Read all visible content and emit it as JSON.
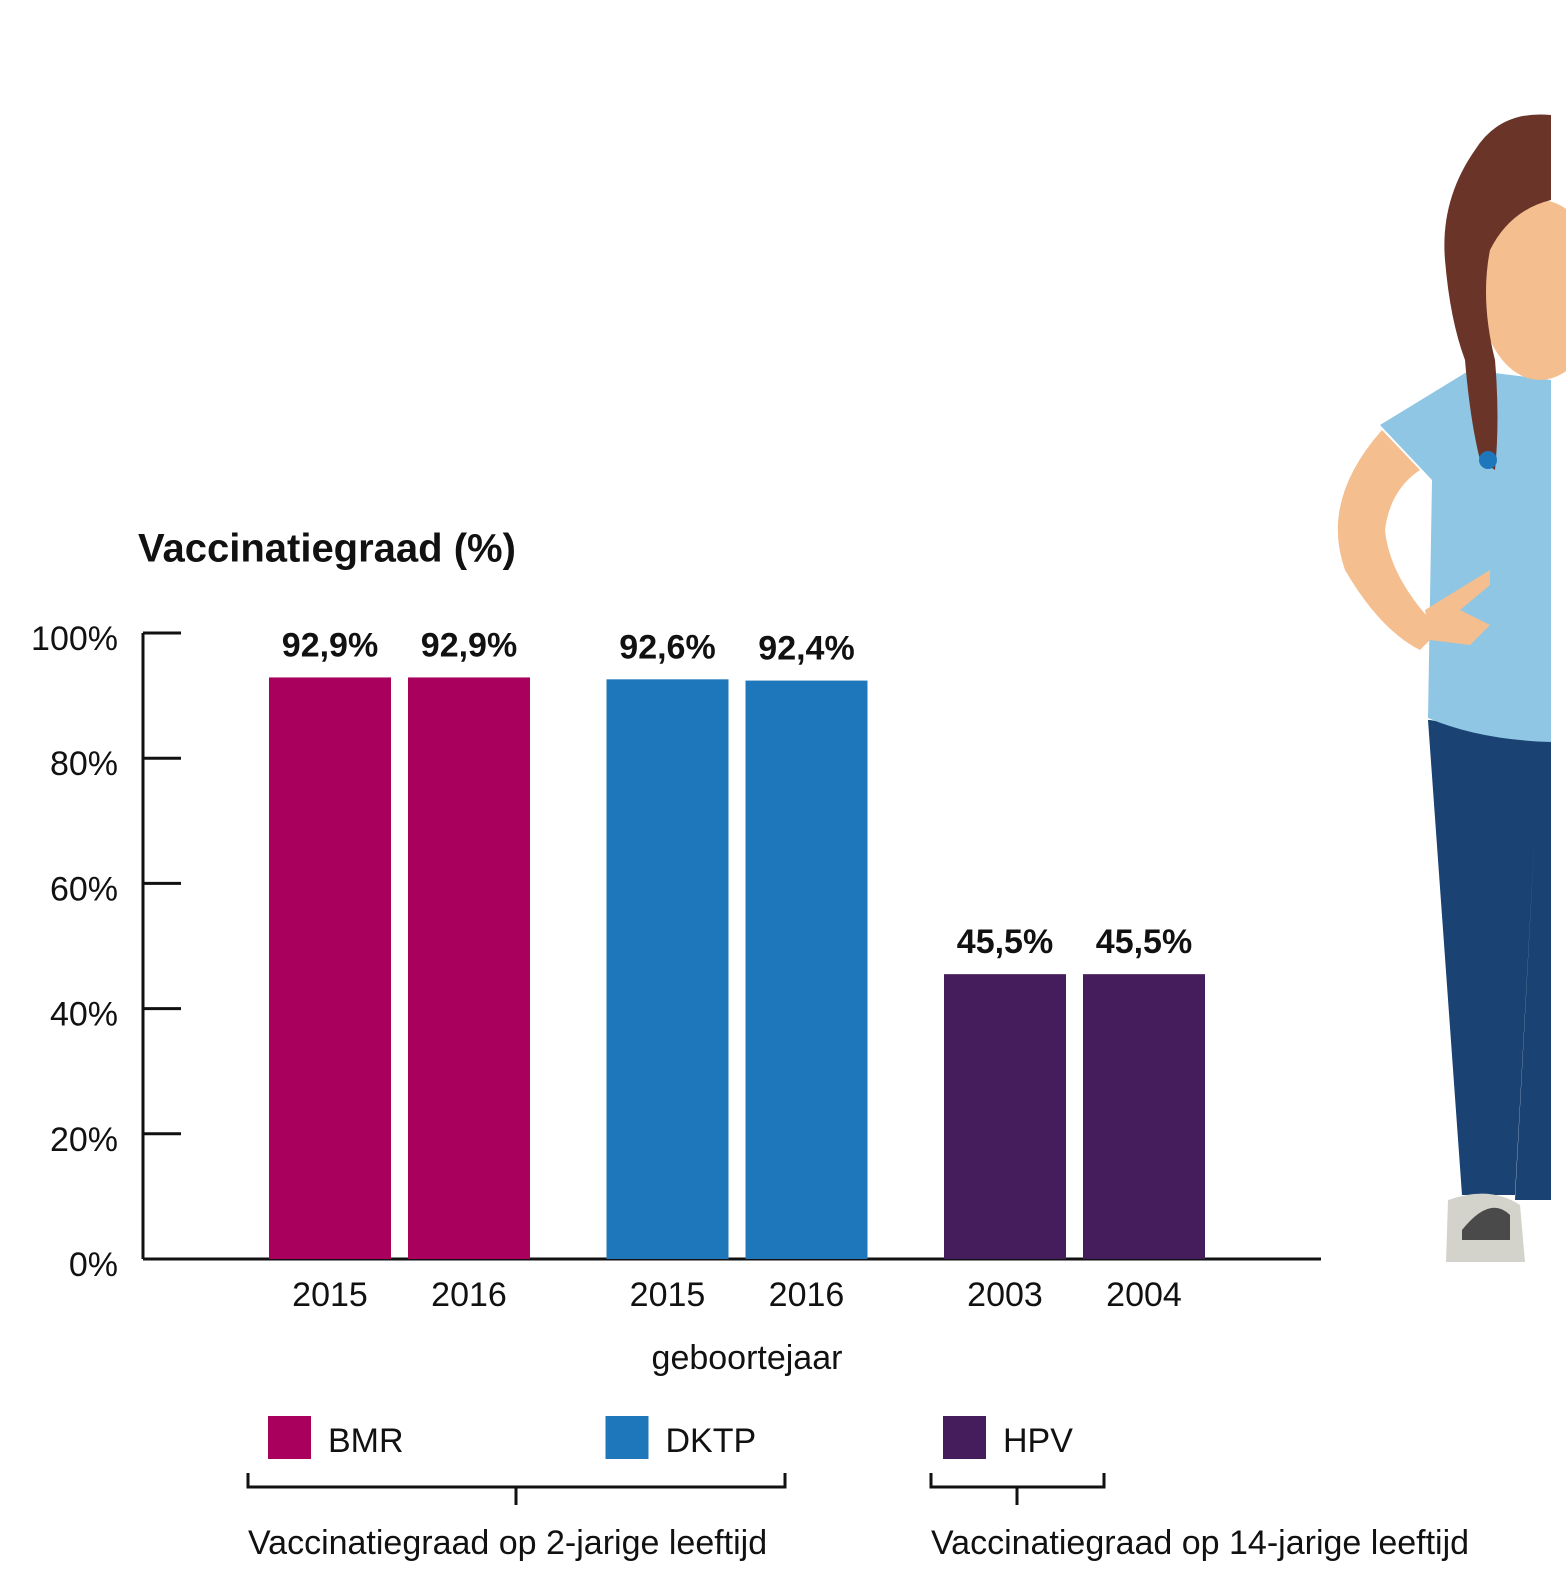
{
  "chart_data": {
    "type": "grouped-bar",
    "title": "Vaccinatiegraad (%)",
    "x_label": "geboortejaar",
    "ylim": [
      0,
      100
    ],
    "yticks": [
      {
        "value": 0,
        "label": "0%"
      },
      {
        "value": 20,
        "label": "20%"
      },
      {
        "value": 40,
        "label": "40%"
      },
      {
        "value": 60,
        "label": "60%"
      },
      {
        "value": 80,
        "label": "80%"
      },
      {
        "value": 100,
        "label": "100%"
      }
    ],
    "series": [
      {
        "name": "BMR",
        "color": "#a8005c",
        "categories": [
          "2015",
          "2016"
        ],
        "values": [
          92.9,
          92.9
        ],
        "value_labels": [
          "92,9%",
          "92,9%"
        ]
      },
      {
        "name": "DKTP",
        "color": "#1f77bb",
        "categories": [
          "2015",
          "2016"
        ],
        "values": [
          92.6,
          92.4
        ],
        "value_labels": [
          "92,6%",
          "92,4%"
        ]
      },
      {
        "name": "HPV",
        "color": "#451c5c",
        "categories": [
          "2003",
          "2004"
        ],
        "values": [
          45.5,
          45.5
        ],
        "value_labels": [
          "45,5%",
          "45,5%"
        ]
      }
    ],
    "annotations": [
      "Vaccinatiegraad op 2-jarige leeftijd",
      "Vaccinatiegraad op 14-jarige leeftijd"
    ]
  }
}
